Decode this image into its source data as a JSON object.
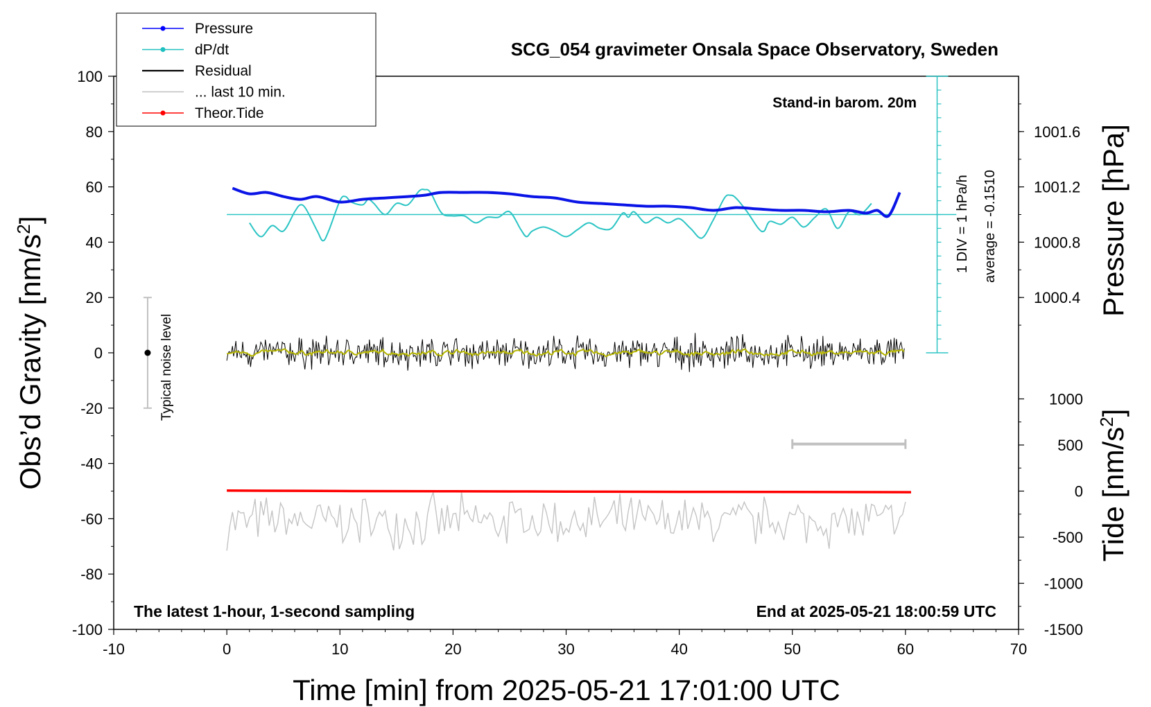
{
  "title": "SCG_054 gravimeter Onsala Space Observatory, Sweden",
  "axes": {
    "x_label": "Time [min] from 2025-05-21 17:01:00 UTC",
    "y_left_label": "Obs’d Gravity [nm/s",
    "y_left_label_sup": "2",
    "y_left_label_end": "]",
    "y_right_pressure_label": "Pressure [hPa]",
    "y_right_tide_label": "Tide [nm/s",
    "y_right_tide_label_sup": "2",
    "y_right_tide_label_end": "]"
  },
  "annotations": {
    "stand_in": "Stand-in barom. 20m",
    "div_label": "1 DIV = 1 hPa/h",
    "average_label": "average = -0.1510",
    "bottom_left": "The latest 1-hour, 1-second sampling",
    "bottom_right": "End at 2025-05-21 18:00:59 UTC",
    "noise_label": "Typical noise level"
  },
  "legend": [
    {
      "label": "Pressure",
      "color": "#0000ff",
      "marker": true
    },
    {
      "label": "dP/dt",
      "color": "#20c0c0",
      "marker": true
    },
    {
      "label": "Residual",
      "color": "#000000",
      "marker": false
    },
    {
      "label": "... last 10 min.",
      "color": "#c0c0c0",
      "marker": false
    },
    {
      "label": "Theor.Tide",
      "color": "#ff0000",
      "marker": true
    }
  ],
  "colors": {
    "pressure": "#0a14e6",
    "dpdt": "#2cc4c4",
    "residual": "#000000",
    "residual_smooth": "#b4b400",
    "last10": "#c4c4c4",
    "tide": "#ff0000",
    "noise_bar": "#c0c0c0"
  },
  "chart_data": {
    "type": "line",
    "xlim": [
      -10,
      70
    ],
    "x_ticks": [
      -10,
      0,
      10,
      20,
      30,
      40,
      50,
      60,
      70
    ],
    "left_axis": {
      "ylim": [
        -100,
        100
      ],
      "ticks": [
        -100,
        -80,
        -60,
        -40,
        -20,
        0,
        20,
        40,
        60,
        80,
        100
      ]
    },
    "pressure_axis": {
      "ticks": [
        1000.4,
        1000.8,
        1001.2,
        1001.6
      ],
      "tick_labels": [
        "1000.4",
        "1000.8",
        "1001.2",
        "1001.6"
      ],
      "value_at_left_0": 1000.0,
      "value_at_left_100": 1002.0
    },
    "tide_axis": {
      "ticks": [
        -1500,
        -1000,
        -500,
        0,
        500,
        1000
      ],
      "tick_labels": [
        "-1500",
        "-1000",
        "-500",
        "0",
        "500",
        "1000"
      ],
      "value_at_left_minus100": -1500,
      "value_at_left_minus50": 0
    },
    "dpdt_scale": {
      "ylim_left_units": [
        0,
        100
      ],
      "zero_level_left_units": 50,
      "div_hpa_per_h": 1,
      "average": -0.151
    },
    "series": [
      {
        "name": "Pressure",
        "unit": "hPa",
        "x": [
          0.5,
          2,
          3.5,
          5,
          6.5,
          8,
          10,
          12,
          14,
          16,
          17.5,
          19,
          21,
          23,
          25,
          27,
          29,
          31,
          33,
          35,
          37,
          39,
          41,
          43,
          45,
          47,
          49,
          51,
          53,
          55,
          56.5,
          57.5,
          58.5,
          59.5
        ],
        "values": [
          1001.19,
          1001.15,
          1001.16,
          1001.13,
          1001.11,
          1001.13,
          1001.09,
          1001.11,
          1001.12,
          1001.13,
          1001.14,
          1001.16,
          1001.16,
          1001.16,
          1001.15,
          1001.13,
          1001.12,
          1001.09,
          1001.08,
          1001.07,
          1001.06,
          1001.06,
          1001.05,
          1001.03,
          1001.05,
          1001.04,
          1001.03,
          1001.03,
          1001.02,
          1001.03,
          1001.01,
          1001.03,
          1000.99,
          1001.16
        ]
      },
      {
        "name": "dP/dt",
        "unit": "hPa/h",
        "x": [
          2,
          3,
          4,
          5,
          6,
          6.5,
          7,
          8,
          8.5,
          9,
          10,
          10.5,
          11,
          12,
          12.5,
          13,
          14,
          15,
          16,
          17,
          17.5,
          18,
          19,
          20,
          21,
          22,
          23,
          24,
          25,
          26,
          26.5,
          27,
          28,
          29,
          30,
          31,
          32,
          33,
          34,
          35,
          35.5,
          36,
          37,
          38,
          39,
          40,
          41,
          42,
          43,
          44,
          44.5,
          45,
          46,
          47,
          47.5,
          48,
          49,
          50,
          51,
          52,
          53,
          54,
          55,
          56,
          57
        ],
        "values": [
          -0.3,
          -0.8,
          -0.4,
          -0.6,
          0.1,
          0.35,
          0.2,
          -0.6,
          -0.95,
          -0.6,
          0.5,
          0.65,
          0.45,
          0.35,
          0.55,
          0.4,
          0.0,
          0.4,
          0.35,
          0.85,
          0.9,
          0.8,
          0.05,
          -0.05,
          -0.05,
          -0.3,
          -0.1,
          -0.1,
          0.1,
          -0.55,
          -0.8,
          -0.6,
          -0.45,
          -0.6,
          -0.8,
          -0.55,
          -0.3,
          -0.5,
          -0.5,
          0.05,
          -0.1,
          0.1,
          -0.3,
          -0.1,
          -0.3,
          -0.15,
          -0.5,
          -0.85,
          -0.2,
          0.6,
          0.7,
          0.6,
          0.1,
          -0.5,
          -0.6,
          -0.25,
          -0.35,
          -0.1,
          -0.45,
          -0.1,
          0.2,
          -0.5,
          0.1,
          0.0,
          0.4
        ]
      },
      {
        "name": "Residual",
        "unit": "nm/s^2",
        "x_range": [
          0,
          60
        ],
        "mean": 0,
        "typical_amplitude": 6
      },
      {
        "name": "... last 10 min.",
        "unit": "nm/s^2",
        "x_range": [
          0,
          60
        ],
        "baseline": -61,
        "typical_amplitude": 8
      },
      {
        "name": "Theor.Tide",
        "unit": "nm/s^2",
        "x": [
          0,
          10,
          20,
          30,
          40,
          50,
          60.5
        ],
        "values": [
          5,
          1,
          -2,
          -5,
          -8,
          -10,
          -12
        ]
      }
    ],
    "noise_level_bar": {
      "x": -7,
      "ylim": [
        -20,
        20
      ],
      "center": 0
    },
    "last10_bracket": {
      "x_range": [
        50,
        60
      ],
      "y": -33
    }
  }
}
